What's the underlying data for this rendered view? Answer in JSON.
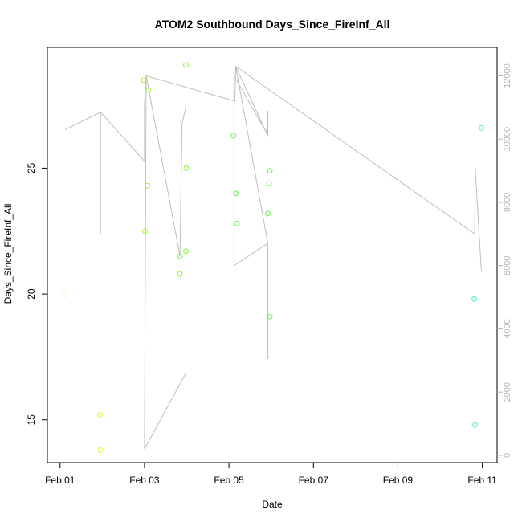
{
  "chart_data": {
    "type": "scatter",
    "title": "ATOM2 Southbound Days_Since_FireInf_All",
    "xlabel": "Date",
    "ylabel": "Days_Since_FireInf_All",
    "x_ticks": [
      "Feb 01",
      "Feb 03",
      "Feb 05",
      "Feb 07",
      "Feb 09",
      "Feb 11"
    ],
    "x_tick_values": [
      0,
      2,
      4,
      6,
      8,
      10
    ],
    "xlim": [
      -0.3,
      10.35
    ],
    "ylim": [
      13.3,
      29.8
    ],
    "y_ticks": [
      15,
      20,
      25
    ],
    "y2lim": [
      -230,
      12900
    ],
    "y2_ticks": [
      0,
      2000,
      4000,
      6000,
      8000,
      10000,
      12000
    ],
    "grid": false,
    "colors": {
      "line": "#bebebe",
      "frame": "#000000",
      "right_axis": "#b5b5b5"
    },
    "series": [
      {
        "type": "scatter",
        "points": [
          {
            "x": 0.12,
            "y": 20.0,
            "color": "#e6f53a"
          },
          {
            "x": 0.95,
            "y": 15.2,
            "color": "#e6f53a"
          },
          {
            "x": 0.96,
            "y": 13.8,
            "color": "#e6f53a"
          },
          {
            "x": 1.98,
            "y": 28.5,
            "color": "#9ef533"
          },
          {
            "x": 2.09,
            "y": 28.1,
            "color": "#9ef533"
          },
          {
            "x": 2.07,
            "y": 24.3,
            "color": "#9ef533"
          },
          {
            "x": 2.01,
            "y": 22.5,
            "color": "#9ef533"
          },
          {
            "x": 2.98,
            "y": 29.1,
            "color": "#82f538"
          },
          {
            "x": 2.99,
            "y": 25.0,
            "color": "#82f538"
          },
          {
            "x": 2.98,
            "y": 21.7,
            "color": "#82f538"
          },
          {
            "x": 2.84,
            "y": 21.5,
            "color": "#82f538"
          },
          {
            "x": 2.84,
            "y": 20.8,
            "color": "#82f538"
          },
          {
            "x": 4.11,
            "y": 26.3,
            "color": "#5ef545"
          },
          {
            "x": 4.16,
            "y": 24.0,
            "color": "#5ef545"
          },
          {
            "x": 4.19,
            "y": 22.8,
            "color": "#5ef545"
          },
          {
            "x": 4.97,
            "y": 24.9,
            "color": "#5ef545"
          },
          {
            "x": 4.95,
            "y": 24.4,
            "color": "#5ef545"
          },
          {
            "x": 4.92,
            "y": 23.2,
            "color": "#5ef545"
          },
          {
            "x": 4.97,
            "y": 19.1,
            "color": "#5ef545"
          },
          {
            "x": 9.98,
            "y": 26.6,
            "color": "#45f5a8"
          },
          {
            "x": 9.81,
            "y": 19.8,
            "color": "#45f5a8"
          },
          {
            "x": 9.83,
            "y": 14.8,
            "color": "#45f5a8"
          }
        ]
      },
      {
        "type": "line",
        "axis": "right",
        "points": [
          {
            "x": 0.12,
            "y": 10300
          },
          {
            "x": 0.96,
            "y": 10850
          },
          {
            "x": 0.96,
            "y": 7000
          },
          {
            "x": 0.96,
            "y": 10850
          },
          {
            "x": 2.0,
            "y": 9300
          },
          {
            "x": 2.0,
            "y": 11100
          },
          {
            "x": 2.04,
            "y": 12000
          },
          {
            "x": 2.0,
            "y": 200
          },
          {
            "x": 2.98,
            "y": 2600
          },
          {
            "x": 2.98,
            "y": 11000
          },
          {
            "x": 2.89,
            "y": 10500
          },
          {
            "x": 2.84,
            "y": 6300
          },
          {
            "x": 2.04,
            "y": 12000
          },
          {
            "x": 4.14,
            "y": 11200
          },
          {
            "x": 4.16,
            "y": 12300
          },
          {
            "x": 4.92,
            "y": 10100
          },
          {
            "x": 4.92,
            "y": 10900
          },
          {
            "x": 4.89,
            "y": 10200
          },
          {
            "x": 4.12,
            "y": 12000
          },
          {
            "x": 4.12,
            "y": 6000
          },
          {
            "x": 4.92,
            "y": 6700
          },
          {
            "x": 4.92,
            "y": 3050
          },
          {
            "x": 4.92,
            "y": 6700
          },
          {
            "x": 4.16,
            "y": 12300
          },
          {
            "x": 9.82,
            "y": 7000
          },
          {
            "x": 9.83,
            "y": 9100
          },
          {
            "x": 9.98,
            "y": 5800
          }
        ]
      }
    ]
  }
}
